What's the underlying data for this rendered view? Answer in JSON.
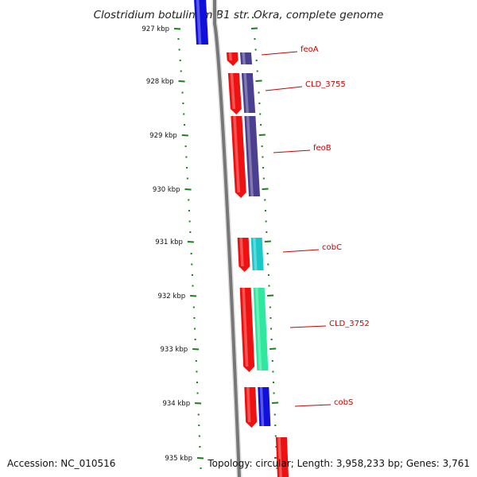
{
  "title": "Clostridium botulinum B1 str. Okra, complete genome",
  "tick_labels": [
    "927 kbp",
    "928 kbp",
    "929 kbp",
    "930 kbp",
    "931 kbp",
    "932 kbp",
    "933 kbp",
    "934 kbp",
    "935 kbp"
  ],
  "genes": [
    {
      "name": "feoA",
      "color": "#4b3f8f"
    },
    {
      "name": "CLD_3755",
      "color": "#4b3f8f"
    },
    {
      "name": "feoB",
      "color": "#4b3f8f"
    },
    {
      "name": "cobC",
      "color": "#19c8c8"
    },
    {
      "name": "CLD_3752",
      "color": "#2ee8a0"
    },
    {
      "name": "cobS",
      "color": "#1010dd"
    }
  ],
  "colors": {
    "backbone": "#777777",
    "forward_cds": "#ee1111",
    "tick_marks": "#1a7f1a",
    "label": "#cc0000"
  },
  "footer": {
    "accession": "Accession: NC_010516",
    "topology": "Topology: circular; Length: 3,958,233 bp; Genes: 3,761"
  }
}
